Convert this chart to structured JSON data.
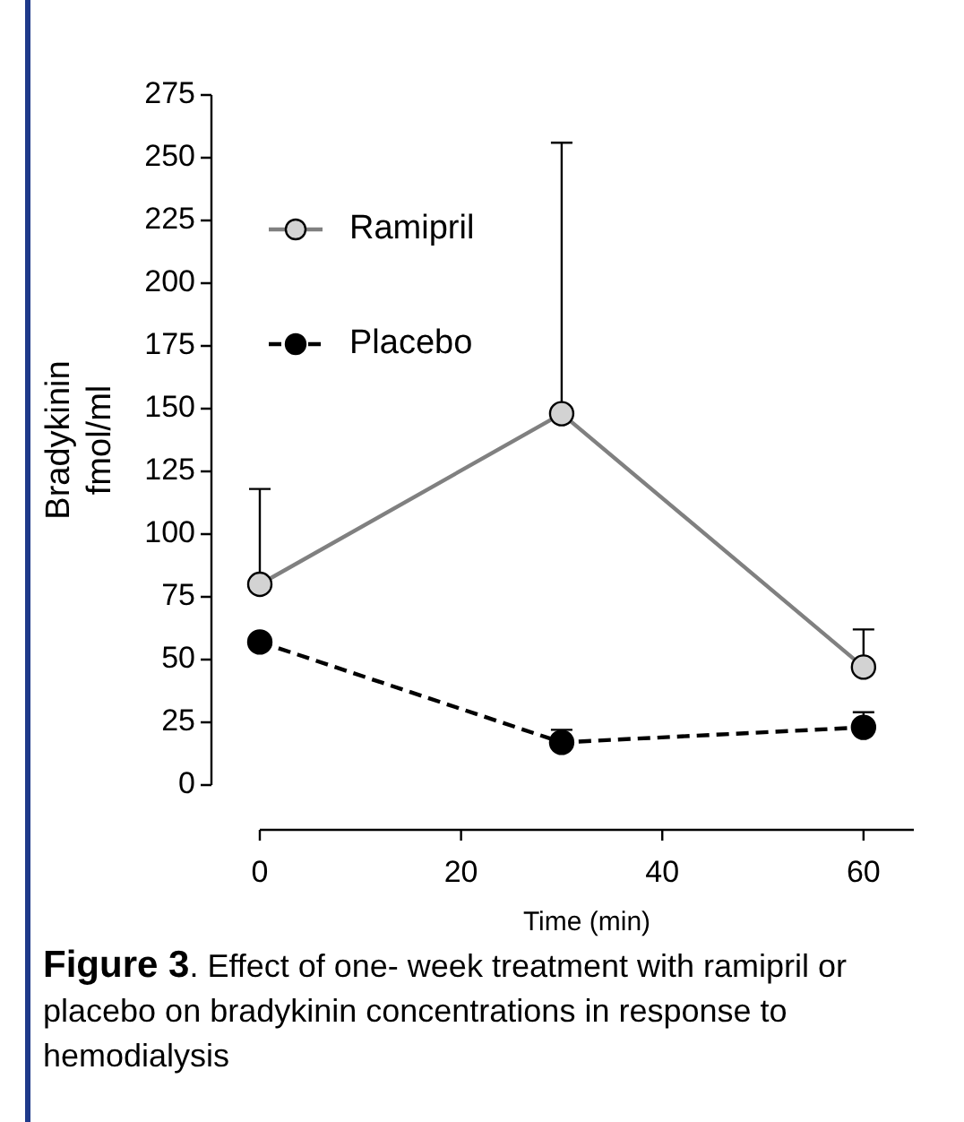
{
  "chart_data": {
    "type": "line",
    "title": "Figure 3",
    "subtitle": ". Effect of one- week treatment with ramipril or placebo on bradykinin concentrations in response to hemodialysis",
    "xlabel": "Time (min)",
    "ylabel": "Bradykinin fmol/ml",
    "x": [
      0,
      30,
      60
    ],
    "series": [
      {
        "name": "Ramipril",
        "color": "#808080",
        "values": [
          80,
          148,
          47
        ],
        "errors": [
          [
            80,
            118
          ],
          [
            148,
            256
          ],
          [
            47,
            62
          ]
        ],
        "line_style": "solid"
      },
      {
        "name": "Placebo",
        "color": "#000000",
        "values": [
          57,
          17,
          23
        ],
        "errors": [
          null,
          [
            17,
            22
          ],
          [
            23,
            29
          ]
        ],
        "line_style": "dashed"
      }
    ],
    "xlim": [
      0,
      65
    ],
    "xticks": [
      0,
      20,
      40,
      60
    ],
    "ylim": [
      0,
      275
    ],
    "yticks": [
      0,
      25,
      50,
      75,
      100,
      125,
      150,
      175,
      200,
      225,
      250,
      275
    ],
    "grid": false,
    "legend": "top left",
    "marker": "circle"
  }
}
